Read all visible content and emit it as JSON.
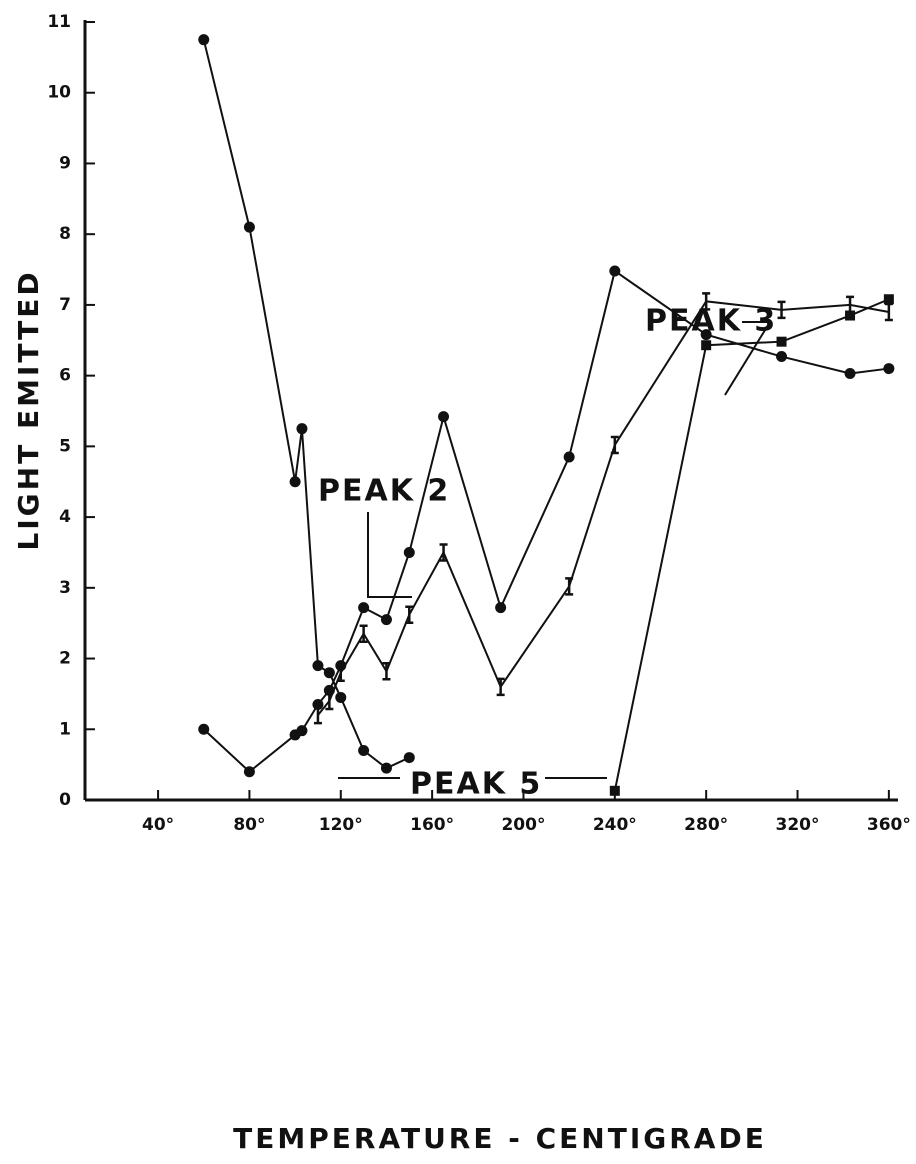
{
  "chart_data": {
    "type": "scatter",
    "xlabel": "TEMPERATURE - CENTIGRADE",
    "ylabel": "LIGHT EMITTED",
    "xlim": [
      8,
      364
    ],
    "ylim": [
      0,
      11
    ],
    "xticks": [
      {
        "value": 40,
        "label": "40°"
      },
      {
        "value": 80,
        "label": "80°"
      },
      {
        "value": 120,
        "label": "120°"
      },
      {
        "value": 160,
        "label": "160°"
      },
      {
        "value": 200,
        "label": "200°"
      },
      {
        "value": 240,
        "label": "240°"
      },
      {
        "value": 280,
        "label": "280°"
      },
      {
        "value": 320,
        "label": "320°"
      },
      {
        "value": 360,
        "label": "360°"
      }
    ],
    "yticks": [
      0,
      1,
      2,
      3,
      4,
      5,
      6,
      7,
      8,
      9,
      10,
      11
    ],
    "annotations": [
      "PEAK 2",
      "PEAK 3",
      "PEAK 5"
    ],
    "series": [
      {
        "marker": "circle",
        "color": "#111",
        "x": [
          60,
          80,
          100,
          103,
          110,
          115,
          120,
          130,
          140,
          150
        ],
        "values": [
          10.75,
          8.1,
          4.5,
          5.25,
          1.9,
          1.8,
          1.45,
          0.7,
          0.45,
          0.6
        ]
      },
      {
        "marker": "circle",
        "color": "#111",
        "x": [
          60,
          80,
          100,
          103,
          110,
          115,
          120,
          130,
          140,
          150,
          165,
          190,
          220,
          240,
          280,
          313,
          343,
          360
        ],
        "values": [
          1.0,
          0.4,
          0.92,
          0.98,
          1.35,
          1.55,
          1.9,
          2.72,
          2.55,
          3.5,
          5.42,
          2.72,
          4.85,
          7.48,
          6.58,
          6.27,
          6.03,
          6.1
        ]
      },
      {
        "marker": "cross",
        "color": "#111",
        "x": [
          110,
          115,
          120,
          130,
          140,
          150,
          165,
          190,
          220,
          240,
          280,
          313,
          343,
          360
        ],
        "values": [
          1.2,
          1.4,
          1.8,
          2.35,
          1.82,
          2.62,
          3.5,
          1.6,
          3.02,
          5.02,
          7.05,
          6.93,
          7.0,
          6.9
        ]
      },
      {
        "marker": "square",
        "color": "#111",
        "x": [
          240,
          280,
          313,
          343,
          360
        ],
        "values": [
          0.13,
          6.43,
          6.48,
          6.85,
          7.08
        ]
      }
    ]
  }
}
